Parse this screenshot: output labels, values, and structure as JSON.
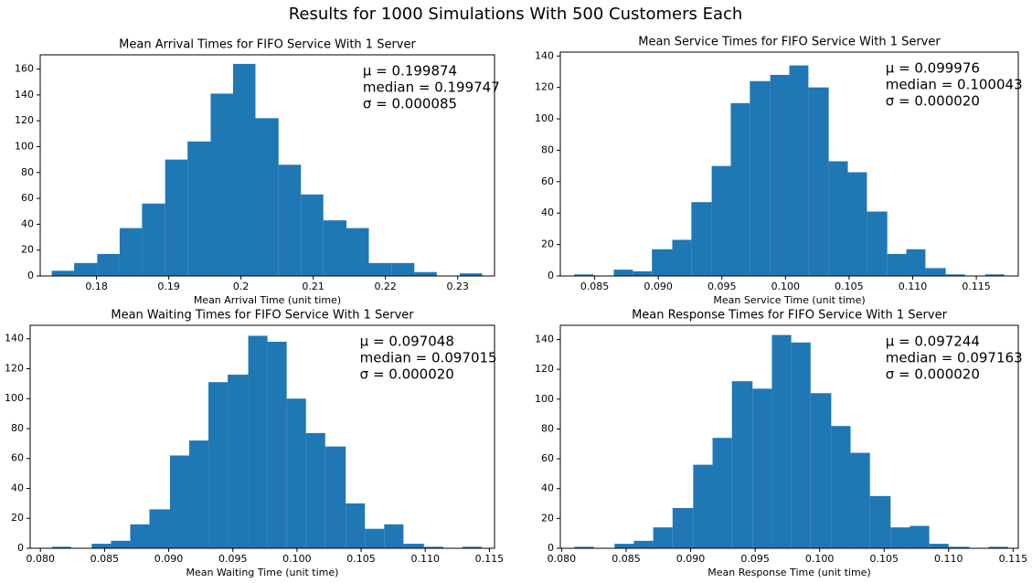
{
  "title": "Results for 1000 Simulations With 500 Customers Each",
  "chart_data": [
    {
      "type": "histogram",
      "title": "Mean Arrival Times for FIFO Service With 1 Server",
      "x_label": "Mean Arrival Time (unit time)",
      "color": "#1f77b4",
      "annotations": [
        "μ = 0.199874",
        "median = 0.199747",
        "σ = 0.000085"
      ],
      "bins": [
        0.1738,
        0.1769,
        0.1801,
        0.1832,
        0.1863,
        0.1895,
        0.1926,
        0.1958,
        0.1989,
        0.202,
        0.2052,
        0.2083,
        0.2114,
        0.2146,
        0.2177,
        0.2209,
        0.224,
        0.2271,
        0.2303,
        0.2334
      ],
      "counts": [
        4,
        10,
        17,
        37,
        56,
        90,
        104,
        141,
        164,
        122,
        86,
        63,
        43,
        37,
        10,
        10,
        3,
        0,
        2
      ],
      "xlim": [
        0.1722,
        0.2351
      ],
      "xticks": [
        0.18,
        0.19,
        0.2,
        0.21,
        0.22,
        0.23
      ],
      "ylim": [
        0,
        171
      ],
      "yticks": [
        0,
        20,
        40,
        60,
        80,
        100,
        120,
        140,
        160
      ]
    },
    {
      "type": "histogram",
      "title": "Mean Service Times for FIFO Service With 1 Server",
      "x_label": "Mean Service Time (unit time)",
      "color": "#1f77b4",
      "annotations": [
        "μ = 0.099976",
        "median = 0.100043",
        "σ = 0.000020"
      ],
      "bins": [
        0.0834,
        0.0849,
        0.0865,
        0.088,
        0.0895,
        0.0911,
        0.0926,
        0.0942,
        0.0957,
        0.0972,
        0.0988,
        0.1003,
        0.1018,
        0.1034,
        0.1049,
        0.1064,
        0.108,
        0.1095,
        0.111,
        0.1126,
        0.1141,
        0.1157,
        0.1172
      ],
      "counts": [
        1,
        0,
        4,
        3,
        17,
        23,
        47,
        70,
        110,
        124,
        128,
        134,
        120,
        73,
        66,
        41,
        14,
        17,
        5,
        1,
        0,
        1
      ],
      "xlim": [
        0.0823,
        0.1183
      ],
      "xticks": [
        0.085,
        {
          "value": 0.09,
          "label": "0.090"
        },
        0.095,
        {
          "value": 0.1,
          "label": "0.100"
        },
        0.105,
        {
          "value": 0.11,
          "label": "0.110"
        },
        0.115
      ],
      "ylim": [
        0,
        142.5
      ],
      "yticks": [
        0,
        20,
        40,
        60,
        80,
        100,
        120,
        140
      ]
    },
    {
      "type": "histogram",
      "title": "Mean Waiting Times for FIFO Service With 1 Server",
      "x_label": "Mean Waiting Time (unit time)",
      "color": "#1f77b4",
      "annotations": [
        "μ = 0.097048",
        "median = 0.097015",
        "σ = 0.000020"
      ],
      "bins": [
        0.0809,
        0.0824,
        0.084,
        0.0855,
        0.087,
        0.0885,
        0.0901,
        0.0916,
        0.0931,
        0.0946,
        0.0962,
        0.0977,
        0.0992,
        0.1007,
        0.1022,
        0.1038,
        0.1053,
        0.1068,
        0.1083,
        0.1099,
        0.1114,
        0.1129,
        0.1144
      ],
      "counts": [
        1,
        0,
        3,
        5,
        16,
        26,
        62,
        72,
        111,
        116,
        142,
        138,
        100,
        77,
        68,
        30,
        13,
        16,
        3,
        1,
        0,
        1
      ],
      "xlim": [
        0.0792,
        0.1154
      ],
      "xticks": [
        {
          "value": 0.08,
          "label": "0.080"
        },
        0.085,
        {
          "value": 0.09,
          "label": "0.090"
        },
        0.095,
        {
          "value": 0.1,
          "label": "0.100"
        },
        0.105,
        {
          "value": 0.11,
          "label": "0.110"
        },
        0.115
      ],
      "ylim": [
        0,
        149
      ],
      "yticks": [
        0,
        20,
        40,
        60,
        80,
        100,
        120,
        140
      ]
    },
    {
      "type": "histogram",
      "title": "Mean Response Times for FIFO Service With 1 Server",
      "x_label": "Mean Response Time (unit time)",
      "color": "#1f77b4",
      "annotations": [
        "μ = 0.097244",
        "median = 0.097163",
        "σ = 0.000020"
      ],
      "bins": [
        0.081,
        0.0825,
        0.0841,
        0.0856,
        0.0871,
        0.0886,
        0.0902,
        0.0917,
        0.0932,
        0.0948,
        0.0963,
        0.0978,
        0.0993,
        0.1009,
        0.1024,
        0.1039,
        0.1055,
        0.107,
        0.1085,
        0.11,
        0.1116,
        0.1131,
        0.1146
      ],
      "counts": [
        1,
        0,
        3,
        5,
        14,
        27,
        56,
        74,
        112,
        107,
        143,
        138,
        104,
        82,
        64,
        35,
        14,
        15,
        3,
        1,
        0,
        1
      ],
      "xlim": [
        0.0799,
        0.1154
      ],
      "xticks": [
        {
          "value": 0.08,
          "label": "0.080"
        },
        0.085,
        {
          "value": 0.09,
          "label": "0.090"
        },
        0.095,
        {
          "value": 0.1,
          "label": "0.100"
        },
        0.105,
        {
          "value": 0.11,
          "label": "0.110"
        },
        0.115
      ],
      "ylim": [
        0,
        149.5
      ],
      "yticks": [
        0,
        20,
        40,
        60,
        80,
        100,
        120,
        140
      ]
    }
  ]
}
